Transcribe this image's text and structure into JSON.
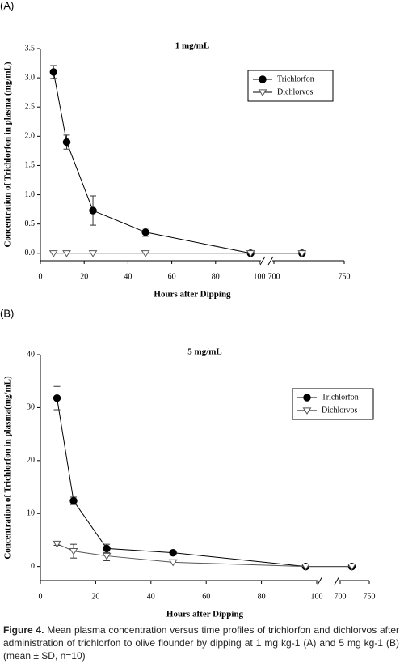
{
  "chart_data": [
    {
      "type": "line",
      "panel_label": "(A)",
      "title": "1 mg/mL",
      "x_label": "Hours after Dipping",
      "y_label": "Concentration of Trichlorfon in plasma (mg/mL)",
      "x": [
        6,
        12,
        24,
        48,
        96,
        720
      ],
      "xlim": [
        0,
        750
      ],
      "xbreak": [
        100,
        700
      ],
      "xticks": [
        0,
        20,
        40,
        60,
        80,
        100,
        700,
        750
      ],
      "ylim": [
        -0.1,
        3.5
      ],
      "yticks": [
        {
          "value": 0,
          "label": "0.0"
        },
        0.5,
        {
          "value": 1,
          "label": "1.0"
        },
        1.5,
        {
          "value": 2,
          "label": "2.0"
        },
        2.5,
        {
          "value": 3,
          "label": "3.0"
        },
        3.5
      ],
      "legend": "upper right",
      "series": [
        {
          "name": "Trichlorfon",
          "color": "#000000",
          "marker": "circle",
          "values": [
            3.1,
            1.9,
            0.73,
            0.36,
            0,
            0
          ],
          "errors": [
            0.11,
            0.12,
            0.25,
            0.07,
            0,
            0
          ]
        },
        {
          "name": "Dichlorvos",
          "color": "#ffffff",
          "marker": "triangle-down",
          "values": [
            0,
            0,
            0,
            0,
            0,
            0
          ],
          "errors": [
            0,
            0,
            0,
            0,
            0,
            0
          ]
        }
      ]
    },
    {
      "type": "line",
      "panel_label": "(B)",
      "title": "5 mg/mL",
      "x_label": "Hours after Dipping",
      "y_label": "Concentration of Trichlorfon in plasma(mg/mL)",
      "x": [
        6,
        12,
        24,
        48,
        96,
        720
      ],
      "xlim": [
        0,
        750
      ],
      "xbreak": [
        100,
        700
      ],
      "xticks": [
        0,
        20,
        40,
        60,
        80,
        100,
        700,
        750
      ],
      "ylim": [
        -2.5,
        40
      ],
      "yticks": [
        0,
        10,
        20,
        30,
        40
      ],
      "legend": "upper right",
      "series": [
        {
          "name": "Trichlorfon",
          "color": "#000000",
          "marker": "circle",
          "values": [
            31.8,
            12.4,
            3.4,
            2.6,
            0,
            0
          ],
          "errors": [
            2.2,
            0.7,
            0.8,
            0,
            0,
            0
          ]
        },
        {
          "name": "Dichlorvos",
          "color": "#ffffff",
          "marker": "triangle-down",
          "values": [
            4.3,
            2.9,
            2.0,
            0.8,
            0,
            0
          ],
          "errors": [
            0.3,
            1.3,
            0.9,
            0,
            0,
            0
          ]
        }
      ]
    }
  ],
  "caption": {
    "label": "Figure 4.",
    "text": "Mean plasma concentration versus time profiles of trichlorfon and dichlorvos after administration of trichlorfon to olive flounder by dipping at 1 mg kg-1 (A) and 5 mg kg-1 (B) (mean ± SD, n=10)"
  }
}
